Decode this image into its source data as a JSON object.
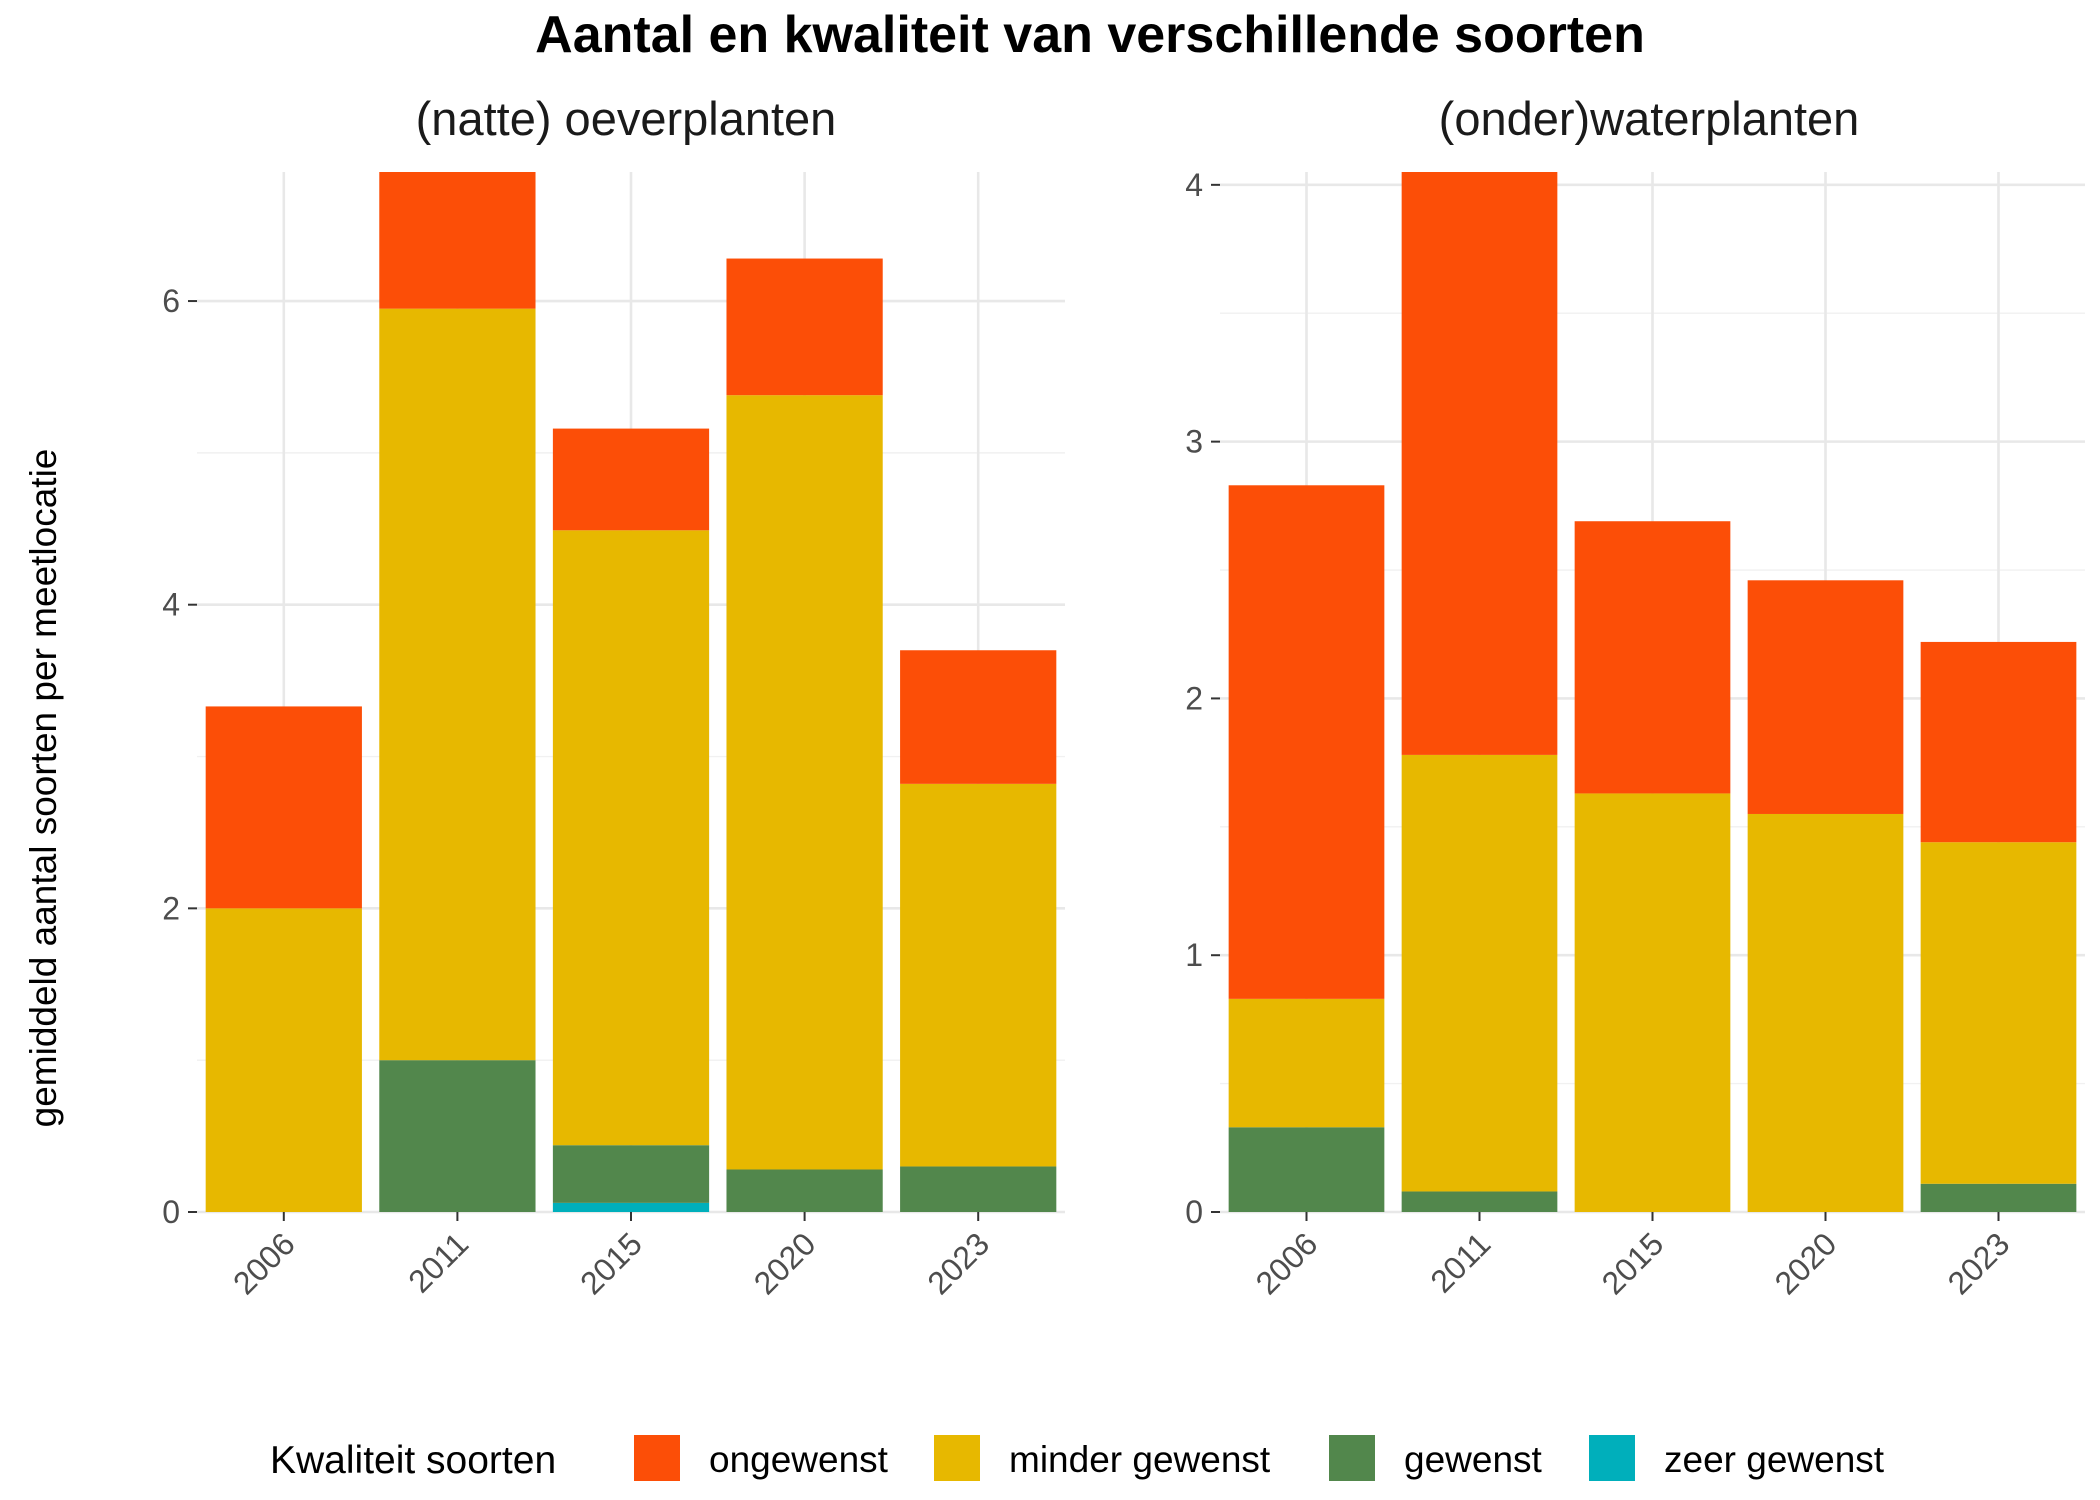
{
  "chart_data": {
    "type": "bar",
    "stacked": true,
    "title": "Aantal en kwaliteit van verschillende soorten",
    "ylabel": "gemiddeld aantal soorten per meetlocatie",
    "xlabel": "",
    "categories": [
      "2006",
      "2011",
      "2015",
      "2020",
      "2023"
    ],
    "legend": {
      "title": "Kwaliteit soorten",
      "position": "bottom",
      "items": [
        "ongewenst",
        "minder gewenst",
        "gewenst",
        "zeer gewenst"
      ]
    },
    "colors": {
      "ongewenst": "#FC4E07",
      "minder gewenst": "#E7B800",
      "gewenst": "#52874C",
      "zeer gewenst": "#00AFBB"
    },
    "grid": true,
    "panels": [
      {
        "title": "(natte) oeverplanten",
        "ylim": [
          0,
          6.85
        ],
        "yticks": [
          0,
          2,
          4,
          6
        ],
        "series": [
          {
            "name": "zeer gewenst",
            "values": [
              0,
              0,
              0.06,
              0,
              0
            ]
          },
          {
            "name": "gewenst",
            "values": [
              0,
              1.0,
              0.38,
              0.28,
              0.3
            ]
          },
          {
            "name": "minder gewenst",
            "values": [
              2.0,
              4.95,
              4.05,
              5.1,
              2.52
            ]
          },
          {
            "name": "ongewenst",
            "values": [
              1.33,
              0.9,
              0.67,
              0.9,
              0.88
            ]
          }
        ]
      },
      {
        "title": "(onder)waterplanten",
        "ylim": [
          0,
          4.05
        ],
        "yticks": [
          0,
          1,
          2,
          3,
          4
        ],
        "series": [
          {
            "name": "zeer gewenst",
            "values": [
              0,
              0,
              0,
              0,
              0
            ]
          },
          {
            "name": "gewenst",
            "values": [
              0.33,
              0.08,
              0,
              0,
              0.11
            ]
          },
          {
            "name": "minder gewenst",
            "values": [
              0.5,
              1.7,
              1.63,
              1.55,
              1.33
            ]
          },
          {
            "name": "ongewenst",
            "values": [
              2.0,
              2.27,
              1.06,
              0.91,
              0.78
            ]
          }
        ]
      }
    ]
  }
}
